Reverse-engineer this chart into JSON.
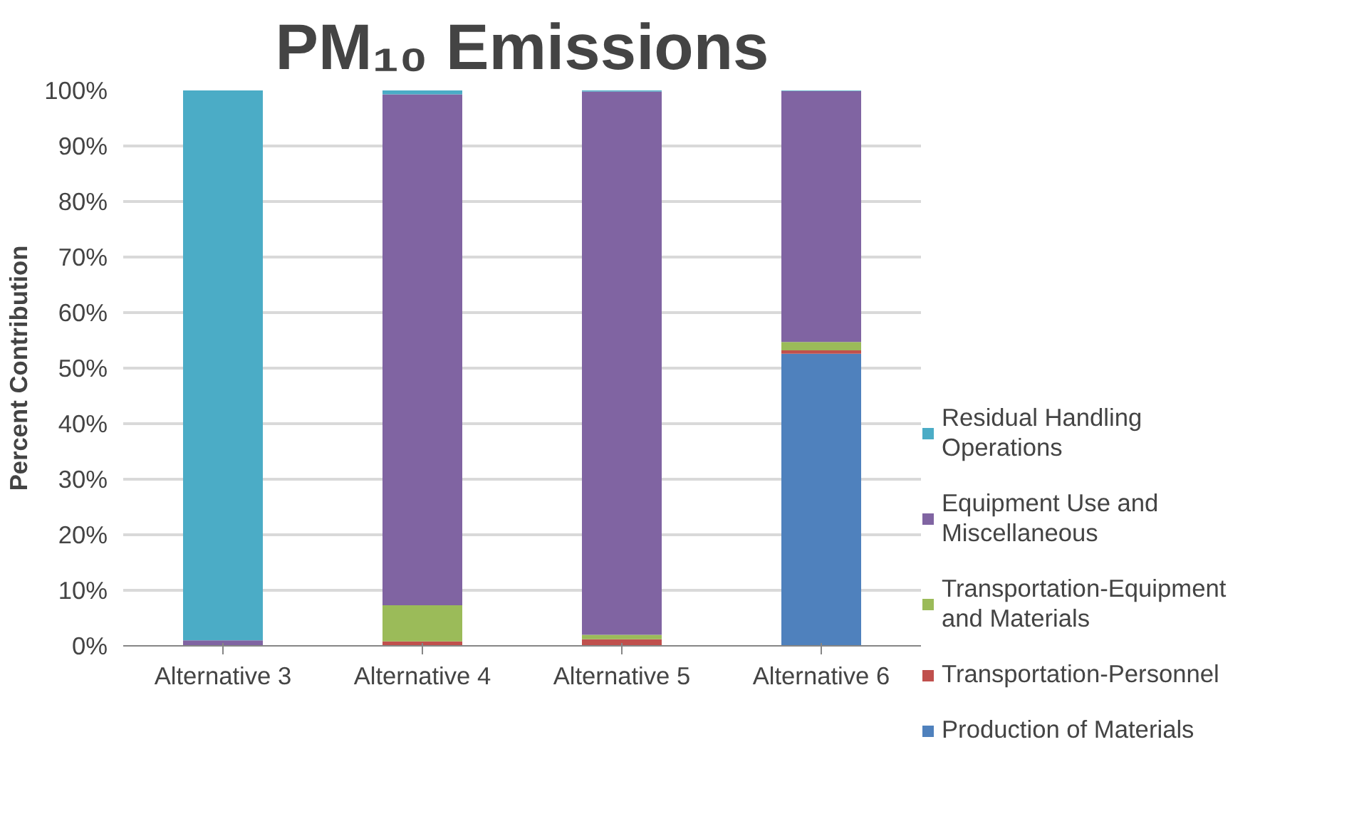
{
  "chart_data": {
    "type": "bar",
    "title": "PM₁₀ Emissions",
    "ylabel": "Percent Contribution",
    "stacked": true,
    "categories": [
      "Alternative 3",
      "Alternative 4",
      "Alternative 5",
      "Alternative 6"
    ],
    "series": [
      {
        "name": "Production of Materials",
        "color": "#4f81bd",
        "values": [
          0,
          0,
          0,
          52.6
        ]
      },
      {
        "name": "Transportation-Personnel",
        "color": "#c0504d",
        "values": [
          0,
          0.8,
          1.2,
          0.6
        ]
      },
      {
        "name": "Transportation-Equipment and Materials",
        "color": "#9bbb59",
        "values": [
          0,
          6.5,
          0.8,
          1.5
        ]
      },
      {
        "name": "Equipment Use and Miscellaneous",
        "color": "#8064a2",
        "values": [
          1,
          92,
          97.8,
          45.2
        ]
      },
      {
        "name": "Residual Handling Operations",
        "color": "#4bacc6",
        "values": [
          99,
          0.7,
          0.2,
          0.1
        ]
      }
    ],
    "ylim": [
      0,
      100
    ],
    "yticks": [
      {
        "value": 0,
        "label": "0%"
      },
      {
        "value": 10,
        "label": "10%"
      },
      {
        "value": 20,
        "label": "20%"
      },
      {
        "value": 30,
        "label": "30%"
      },
      {
        "value": 40,
        "label": "40%"
      },
      {
        "value": 50,
        "label": "50%"
      },
      {
        "value": 60,
        "label": "60%"
      },
      {
        "value": 70,
        "label": "70%"
      },
      {
        "value": 80,
        "label": "80%"
      },
      {
        "value": 90,
        "label": "90%"
      },
      {
        "value": 100,
        "label": "100%"
      }
    ],
    "grid": "y",
    "legend": "right"
  }
}
